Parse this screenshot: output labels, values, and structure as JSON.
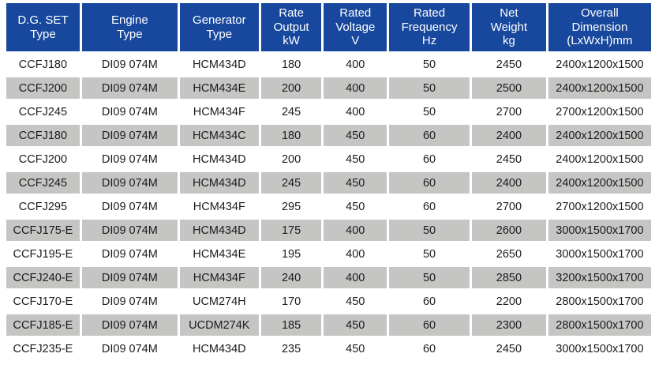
{
  "colors": {
    "header_bg": "#17489d",
    "header_text": "#ffffff",
    "row_even_bg": "#c5c5c4",
    "row_odd_bg": "#ffffff",
    "body_text": "#1c1c1c"
  },
  "table": {
    "columns": [
      {
        "id": "dg_set",
        "label": "D.G. SET\nType"
      },
      {
        "id": "engine",
        "label": "Engine\nType"
      },
      {
        "id": "generator",
        "label": "Generator\nType"
      },
      {
        "id": "output_kw",
        "label": "Rate\nOutput\nkW"
      },
      {
        "id": "voltage_v",
        "label": "Rated\nVoltage\nV"
      },
      {
        "id": "frequency_hz",
        "label": "Rated\nFrequency\nHz"
      },
      {
        "id": "weight_kg",
        "label": "Net\nWeight\nkg"
      },
      {
        "id": "dimension_mm",
        "label": "Overall\nDimension\n(LxWxH)mm"
      }
    ],
    "rows": [
      {
        "dg_set": "CCFJ180",
        "engine": "DI09 074M",
        "generator": "HCM434D",
        "output_kw": "180",
        "voltage_v": "400",
        "frequency_hz": "50",
        "weight_kg": "2450",
        "dimension_mm": "2400x1200x1500"
      },
      {
        "dg_set": "CCFJ200",
        "engine": "DI09 074M",
        "generator": "HCM434E",
        "output_kw": "200",
        "voltage_v": "400",
        "frequency_hz": "50",
        "weight_kg": "2500",
        "dimension_mm": "2400x1200x1500"
      },
      {
        "dg_set": "CCFJ245",
        "engine": "DI09 074M",
        "generator": "HCM434F",
        "output_kw": "245",
        "voltage_v": "400",
        "frequency_hz": "50",
        "weight_kg": "2700",
        "dimension_mm": "2700x1200x1500"
      },
      {
        "dg_set": "CCFJ180",
        "engine": "DI09 074M",
        "generator": "HCM434C",
        "output_kw": "180",
        "voltage_v": "450",
        "frequency_hz": "60",
        "weight_kg": "2400",
        "dimension_mm": "2400x1200x1500"
      },
      {
        "dg_set": "CCFJ200",
        "engine": "DI09 074M",
        "generator": "HCM434D",
        "output_kw": "200",
        "voltage_v": "450",
        "frequency_hz": "60",
        "weight_kg": "2450",
        "dimension_mm": "2400x1200x1500"
      },
      {
        "dg_set": "CCFJ245",
        "engine": "DI09 074M",
        "generator": "HCM434D",
        "output_kw": "245",
        "voltage_v": "450",
        "frequency_hz": "60",
        "weight_kg": "2400",
        "dimension_mm": "2400x1200x1500"
      },
      {
        "dg_set": "CCFJ295",
        "engine": "DI09 074M",
        "generator": "HCM434F",
        "output_kw": "295",
        "voltage_v": "450",
        "frequency_hz": "60",
        "weight_kg": "2700",
        "dimension_mm": "2700x1200x1500"
      },
      {
        "dg_set": "CCFJ175-E",
        "engine": "DI09 074M",
        "generator": "HCM434D",
        "output_kw": "175",
        "voltage_v": "400",
        "frequency_hz": "50",
        "weight_kg": "2600",
        "dimension_mm": "3000x1500x1700"
      },
      {
        "dg_set": "CCFJ195-E",
        "engine": "DI09 074M",
        "generator": "HCM434E",
        "output_kw": "195",
        "voltage_v": "400",
        "frequency_hz": "50",
        "weight_kg": "2650",
        "dimension_mm": "3000x1500x1700"
      },
      {
        "dg_set": "CCFJ240-E",
        "engine": "DI09 074M",
        "generator": "HCM434F",
        "output_kw": "240",
        "voltage_v": "400",
        "frequency_hz": "50",
        "weight_kg": "2850",
        "dimension_mm": "3200x1500x1700"
      },
      {
        "dg_set": "CCFJ170-E",
        "engine": "DI09 074M",
        "generator": "UCM274H",
        "output_kw": "170",
        "voltage_v": "450",
        "frequency_hz": "60",
        "weight_kg": "2200",
        "dimension_mm": "2800x1500x1700"
      },
      {
        "dg_set": "CCFJ185-E",
        "engine": "DI09 074M",
        "generator": "UCDM274K",
        "output_kw": "185",
        "voltage_v": "450",
        "frequency_hz": "60",
        "weight_kg": "2300",
        "dimension_mm": "2800x1500x1700"
      },
      {
        "dg_set": "CCFJ235-E",
        "engine": "DI09 074M",
        "generator": "HCM434D",
        "output_kw": "235",
        "voltage_v": "450",
        "frequency_hz": "60",
        "weight_kg": "2450",
        "dimension_mm": "3000x1500x1700"
      }
    ]
  }
}
